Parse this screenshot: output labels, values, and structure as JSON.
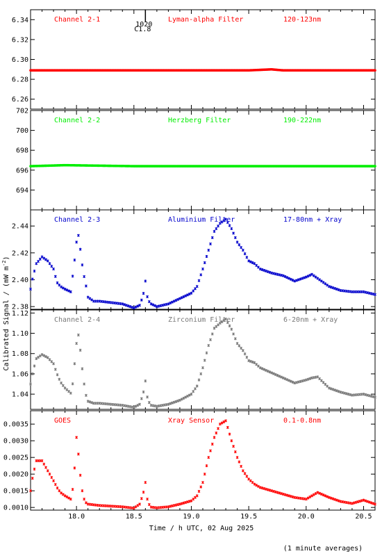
{
  "figure": {
    "ylabel": "Calibrated Signal / (mW m",
    "ylabel_sup": "-2",
    "ylabel_end": ")",
    "xlabel": "Time / h UTC, 02 Aug 2025",
    "footnote": "(1 minute averages)",
    "event_marker": {
      "time": "1020",
      "class": "C1.8",
      "x": 18.6
    }
  },
  "chart_data": [
    {
      "type": "scatter",
      "channel": "Channel 2-1",
      "filter": "Lyman-alpha Filter",
      "band": "120-123nm",
      "color": "#ff0000",
      "xlim": [
        17.6,
        20.6
      ],
      "ylim": [
        6.25,
        6.35
      ],
      "xticks": [
        18.0,
        18.5,
        19.0,
        19.5,
        20.0,
        20.5
      ],
      "yticks": [
        6.26,
        6.28,
        6.3,
        6.32,
        6.34
      ],
      "ytick_labels": [
        "6.26",
        "6.28",
        "6.30",
        "6.32",
        "6.34"
      ],
      "x": [
        17.6,
        18.0,
        18.5,
        19.0,
        19.5,
        19.7,
        19.8,
        20.0,
        20.6
      ],
      "y": [
        6.289,
        6.289,
        6.289,
        6.289,
        6.289,
        6.29,
        6.289,
        6.289,
        6.289
      ]
    },
    {
      "type": "scatter",
      "channel": "Channel 2-2",
      "filter": "Herzberg Filter",
      "band": "190-222nm",
      "color": "#00ee00",
      "xlim": [
        17.6,
        20.6
      ],
      "ylim": [
        692,
        702
      ],
      "xticks": [
        18.0,
        18.5,
        19.0,
        19.5,
        20.0,
        20.5
      ],
      "yticks": [
        694,
        696,
        698,
        700,
        702
      ],
      "ytick_labels": [
        "694",
        "696",
        "698",
        "700",
        "702"
      ],
      "x": [
        17.6,
        17.9,
        18.5,
        19.0,
        19.5,
        20.0,
        20.6
      ],
      "y": [
        696.4,
        696.5,
        696.4,
        696.4,
        696.4,
        696.4,
        696.4
      ]
    },
    {
      "type": "scatter",
      "channel": "Channel 2-3",
      "filter": "Aluminium Filter",
      "band": "17-80nm + Xray",
      "color": "#0000cc",
      "xlim": [
        17.6,
        20.6
      ],
      "ylim": [
        2.378,
        2.452
      ],
      "xticks": [
        18.0,
        18.5,
        19.0,
        19.5,
        20.0,
        20.5
      ],
      "yticks": [
        2.38,
        2.4,
        2.42,
        2.44
      ],
      "ytick_labels": [
        "2.38",
        "2.40",
        "2.42",
        "2.44"
      ],
      "x": [
        17.6,
        17.62,
        17.65,
        17.7,
        17.75,
        17.8,
        17.83,
        17.86,
        17.9,
        17.95,
        17.97,
        17.98,
        18.0,
        18.02,
        18.04,
        18.06,
        18.08,
        18.1,
        18.15,
        18.2,
        18.3,
        18.4,
        18.5,
        18.55,
        18.58,
        18.6,
        18.62,
        18.65,
        18.7,
        18.8,
        18.9,
        19.0,
        19.05,
        19.1,
        19.15,
        19.2,
        19.25,
        19.3,
        19.35,
        19.4,
        19.45,
        19.5,
        19.55,
        19.6,
        19.7,
        19.8,
        19.9,
        20.0,
        20.05,
        20.1,
        20.2,
        20.3,
        20.4,
        20.5,
        20.6
      ],
      "y": [
        2.393,
        2.402,
        2.412,
        2.417,
        2.414,
        2.408,
        2.398,
        2.395,
        2.393,
        2.391,
        2.405,
        2.412,
        2.428,
        2.434,
        2.417,
        2.405,
        2.397,
        2.387,
        2.384,
        2.384,
        2.383,
        2.382,
        2.379,
        2.381,
        2.388,
        2.399,
        2.385,
        2.382,
        2.38,
        2.382,
        2.386,
        2.39,
        2.395,
        2.408,
        2.422,
        2.436,
        2.442,
        2.445,
        2.438,
        2.428,
        2.422,
        2.414,
        2.412,
        2.408,
        2.405,
        2.403,
        2.399,
        2.402,
        2.404,
        2.401,
        2.395,
        2.392,
        2.391,
        2.391,
        2.389
      ]
    },
    {
      "type": "scatter",
      "channel": "Channel 2-4",
      "filter": "Zirconium Filter",
      "band": "6-20nm + Xray",
      "color": "#777777",
      "xlim": [
        17.6,
        20.6
      ],
      "ylim": [
        1.025,
        1.123
      ],
      "xticks": [
        18.0,
        18.5,
        19.0,
        19.5,
        20.0,
        20.5
      ],
      "yticks": [
        1.04,
        1.06,
        1.08,
        1.1,
        1.12
      ],
      "ytick_labels": [
        "1.04",
        "1.06",
        "1.08",
        "1.10",
        "1.12"
      ],
      "x": [
        17.6,
        17.62,
        17.65,
        17.7,
        17.75,
        17.8,
        17.83,
        17.86,
        17.9,
        17.95,
        17.97,
        17.98,
        18.0,
        18.02,
        18.04,
        18.06,
        18.08,
        18.1,
        18.15,
        18.2,
        18.3,
        18.4,
        18.5,
        18.55,
        18.58,
        18.6,
        18.62,
        18.65,
        18.7,
        18.8,
        18.9,
        19.0,
        19.05,
        19.1,
        19.15,
        19.2,
        19.25,
        19.3,
        19.35,
        19.4,
        19.45,
        19.5,
        19.55,
        19.6,
        19.7,
        19.8,
        19.9,
        20.0,
        20.05,
        20.1,
        20.2,
        20.3,
        20.4,
        20.5,
        20.6
      ],
      "y": [
        1.05,
        1.062,
        1.075,
        1.079,
        1.076,
        1.07,
        1.06,
        1.052,
        1.046,
        1.041,
        1.052,
        1.066,
        1.09,
        1.1,
        1.075,
        1.055,
        1.04,
        1.033,
        1.031,
        1.031,
        1.03,
        1.029,
        1.027,
        1.03,
        1.04,
        1.053,
        1.034,
        1.029,
        1.028,
        1.03,
        1.034,
        1.04,
        1.048,
        1.066,
        1.088,
        1.105,
        1.11,
        1.114,
        1.104,
        1.09,
        1.083,
        1.073,
        1.071,
        1.066,
        1.061,
        1.056,
        1.051,
        1.054,
        1.056,
        1.057,
        1.046,
        1.042,
        1.039,
        1.04,
        1.037
      ]
    },
    {
      "type": "scatter",
      "channel": "GOES",
      "filter": "Xray Sensor",
      "band": "0.1-0.8nm",
      "color": "#ff0000",
      "xlim": [
        17.6,
        20.6
      ],
      "ylim": [
        0.00092,
        0.0039
      ],
      "xticks": [
        18.0,
        18.5,
        19.0,
        19.5,
        20.0,
        20.5
      ],
      "yticks": [
        0.001,
        0.0015,
        0.002,
        0.0025,
        0.003,
        0.0035
      ],
      "ytick_labels": [
        "0.0010",
        "0.0015",
        "0.0020",
        "0.0025",
        "0.0030",
        "0.0035"
      ],
      "x": [
        17.6,
        17.62,
        17.65,
        17.7,
        17.75,
        17.8,
        17.83,
        17.86,
        17.9,
        17.95,
        17.97,
        17.98,
        18.0,
        18.02,
        18.04,
        18.06,
        18.08,
        18.1,
        18.15,
        18.2,
        18.3,
        18.4,
        18.5,
        18.55,
        18.58,
        18.6,
        18.62,
        18.65,
        18.7,
        18.8,
        18.9,
        19.0,
        19.05,
        19.1,
        19.15,
        19.2,
        19.25,
        19.3,
        19.35,
        19.4,
        19.45,
        19.5,
        19.55,
        19.6,
        19.7,
        19.8,
        19.9,
        20.0,
        20.05,
        20.1,
        20.2,
        20.3,
        20.4,
        20.5,
        20.6
      ],
      "y": [
        0.0015,
        0.00195,
        0.0024,
        0.0024,
        0.0021,
        0.0018,
        0.0016,
        0.00145,
        0.00135,
        0.00125,
        0.0016,
        0.002,
        0.0031,
        0.0025,
        0.0017,
        0.0013,
        0.00115,
        0.0011,
        0.00108,
        0.00106,
        0.00104,
        0.00102,
        0.00098,
        0.0011,
        0.0014,
        0.00175,
        0.00115,
        0.00101,
        0.00099,
        0.00102,
        0.0011,
        0.0012,
        0.00135,
        0.00175,
        0.0025,
        0.0031,
        0.0035,
        0.0036,
        0.003,
        0.0025,
        0.0021,
        0.00185,
        0.0017,
        0.0016,
        0.0015,
        0.0014,
        0.0013,
        0.00125,
        0.00135,
        0.00145,
        0.0013,
        0.00118,
        0.00112,
        0.00122,
        0.0011
      ]
    }
  ]
}
